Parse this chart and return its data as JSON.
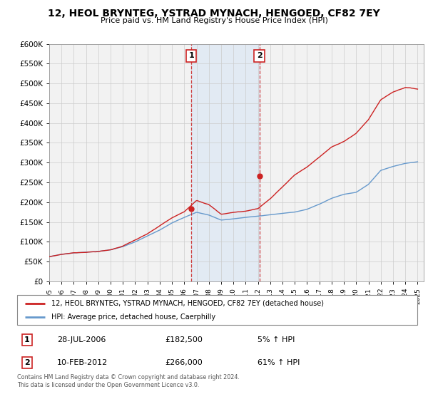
{
  "title": "12, HEOL BRYNTEG, YSTRAD MYNACH, HENGOED, CF82 7EY",
  "subtitle": "Price paid vs. HM Land Registry's House Price Index (HPI)",
  "ylim": [
    0,
    600000
  ],
  "yticks": [
    0,
    50000,
    100000,
    150000,
    200000,
    250000,
    300000,
    350000,
    400000,
    450000,
    500000,
    550000,
    600000
  ],
  "ytick_labels": [
    "£0",
    "£50K",
    "£100K",
    "£150K",
    "£200K",
    "£250K",
    "£300K",
    "£350K",
    "£400K",
    "£450K",
    "£500K",
    "£550K",
    "£600K"
  ],
  "xlim_start": 1995.0,
  "xlim_end": 2025.5,
  "xticks": [
    1995,
    1996,
    1997,
    1998,
    1999,
    2000,
    2001,
    2002,
    2003,
    2004,
    2005,
    2006,
    2007,
    2008,
    2009,
    2010,
    2011,
    2012,
    2013,
    2014,
    2015,
    2016,
    2017,
    2018,
    2019,
    2020,
    2021,
    2022,
    2023,
    2024,
    2025
  ],
  "sale1_x": 2006.57,
  "sale1_y": 182500,
  "sale2_x": 2012.12,
  "sale2_y": 266000,
  "sale1_date": "28-JUL-2006",
  "sale1_price": "£182,500",
  "sale1_hpi": "5% ↑ HPI",
  "sale2_date": "10-FEB-2012",
  "sale2_price": "£266,000",
  "sale2_hpi": "61% ↑ HPI",
  "hpi_color": "#6699cc",
  "price_color": "#cc2222",
  "shading_color": "#cce0f5",
  "legend_line1": "12, HEOL BRYNTEG, YSTRAD MYNACH, HENGOED, CF82 7EY (detached house)",
  "legend_line2": "HPI: Average price, detached house, Caerphilly",
  "footnote": "Contains HM Land Registry data © Crown copyright and database right 2024.\nThis data is licensed under the Open Government Licence v3.0.",
  "plot_bg_color": "#f2f2f2",
  "hpi_keypoints_x": [
    1995,
    1996,
    1997,
    1998,
    1999,
    2000,
    2001,
    2002,
    2003,
    2004,
    2005,
    2006,
    2007,
    2008,
    2009,
    2010,
    2011,
    2012,
    2013,
    2014,
    2015,
    2016,
    2017,
    2018,
    2019,
    2020,
    2021,
    2022,
    2023,
    2024,
    2025
  ],
  "hpi_keypoints_y": [
    62000,
    68000,
    72000,
    74000,
    76000,
    80000,
    88000,
    100000,
    115000,
    130000,
    148000,
    162000,
    175000,
    168000,
    155000,
    158000,
    162000,
    165000,
    168000,
    172000,
    175000,
    182000,
    195000,
    210000,
    220000,
    225000,
    245000,
    280000,
    290000,
    298000,
    302000
  ],
  "price_keypoints_x": [
    1995,
    1996,
    1997,
    1998,
    1999,
    2000,
    2001,
    2002,
    2003,
    2004,
    2005,
    2006,
    2007,
    2008,
    2009,
    2010,
    2011,
    2012,
    2013,
    2014,
    2015,
    2016,
    2017,
    2018,
    2019,
    2020,
    2021,
    2022,
    2023,
    2024,
    2025
  ],
  "price_keypoints_y": [
    62000,
    68000,
    72000,
    74000,
    76000,
    80000,
    90000,
    105000,
    120000,
    140000,
    160000,
    175000,
    205000,
    195000,
    170000,
    175000,
    178000,
    185000,
    210000,
    240000,
    270000,
    290000,
    315000,
    340000,
    355000,
    375000,
    410000,
    460000,
    480000,
    492000,
    488000
  ]
}
